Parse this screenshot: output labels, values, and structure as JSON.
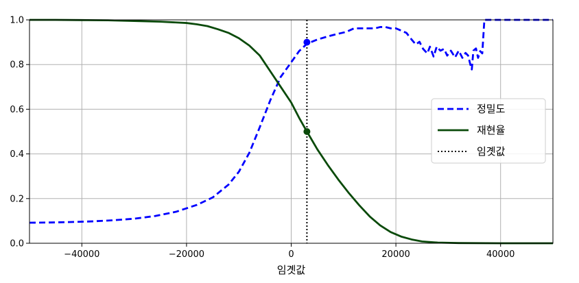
{
  "chart_data": {
    "type": "line",
    "title": "",
    "xlabel": "임곗값",
    "ylabel": "",
    "xlim": [
      -50000,
      50000
    ],
    "ylim": [
      0.0,
      1.0
    ],
    "grid": true,
    "legend_position": "center-right",
    "x_ticks": [
      -40000,
      -20000,
      0,
      20000,
      40000
    ],
    "x_tick_labels": [
      "−40000",
      "−20000",
      "0",
      "20000",
      "40000"
    ],
    "y_ticks": [
      0.0,
      0.2,
      0.4,
      0.6,
      0.8,
      1.0
    ],
    "y_tick_labels": [
      "0.0",
      "0.2",
      "0.4",
      "0.6",
      "0.8",
      "1.0"
    ],
    "threshold": {
      "name": "임곗값",
      "x": 3000,
      "color": "#000000",
      "style": "dotted"
    },
    "series": [
      {
        "name": "정밀도",
        "color": "#0000ff",
        "style": "dashed",
        "marker_point": [
          3000,
          0.9
        ],
        "points": [
          [
            -50000,
            0.092
          ],
          [
            -46000,
            0.093
          ],
          [
            -42000,
            0.095
          ],
          [
            -38000,
            0.098
          ],
          [
            -34000,
            0.103
          ],
          [
            -30000,
            0.11
          ],
          [
            -26000,
            0.122
          ],
          [
            -22000,
            0.141
          ],
          [
            -18000,
            0.172
          ],
          [
            -15000,
            0.205
          ],
          [
            -12000,
            0.262
          ],
          [
            -10000,
            0.32
          ],
          [
            -8000,
            0.405
          ],
          [
            -6000,
            0.52
          ],
          [
            -4000,
            0.64
          ],
          [
            -2000,
            0.745
          ],
          [
            0,
            0.81
          ],
          [
            1500,
            0.86
          ],
          [
            3000,
            0.893
          ],
          [
            5000,
            0.912
          ],
          [
            7000,
            0.926
          ],
          [
            9000,
            0.938
          ],
          [
            10500,
            0.946
          ],
          [
            12000,
            0.962
          ],
          [
            14000,
            0.962
          ],
          [
            16000,
            0.962
          ],
          [
            17000,
            0.968
          ],
          [
            18000,
            0.968
          ],
          [
            19000,
            0.962
          ],
          [
            20000,
            0.962
          ],
          [
            21000,
            0.952
          ],
          [
            22000,
            0.942
          ],
          [
            23000,
            0.912
          ],
          [
            23800,
            0.89
          ],
          [
            24500,
            0.902
          ],
          [
            25200,
            0.87
          ],
          [
            26000,
            0.85
          ],
          [
            26500,
            0.88
          ],
          [
            27200,
            0.836
          ],
          [
            27800,
            0.88
          ],
          [
            28500,
            0.862
          ],
          [
            29200,
            0.87
          ],
          [
            29800,
            0.84
          ],
          [
            30500,
            0.862
          ],
          [
            31300,
            0.832
          ],
          [
            32000,
            0.862
          ],
          [
            32700,
            0.83
          ],
          [
            33300,
            0.852
          ],
          [
            33800,
            0.84
          ],
          [
            34200,
            0.802
          ],
          [
            34500,
            0.778
          ],
          [
            34800,
            0.862
          ],
          [
            35300,
            0.872
          ],
          [
            35700,
            0.83
          ],
          [
            36100,
            0.86
          ],
          [
            36500,
            0.85
          ],
          [
            36900,
            1.0
          ],
          [
            42000,
            1.0
          ],
          [
            50000,
            1.0
          ]
        ]
      },
      {
        "name": "재현율",
        "color": "#0a4a0a",
        "style": "solid",
        "marker_point": [
          3000,
          0.5
        ],
        "points": [
          [
            -50000,
            1.0
          ],
          [
            -45000,
            1.0
          ],
          [
            -40000,
            0.999
          ],
          [
            -35000,
            0.998
          ],
          [
            -30000,
            0.995
          ],
          [
            -25000,
            0.992
          ],
          [
            -20000,
            0.986
          ],
          [
            -18000,
            0.98
          ],
          [
            -16000,
            0.972
          ],
          [
            -14000,
            0.958
          ],
          [
            -12000,
            0.942
          ],
          [
            -10000,
            0.918
          ],
          [
            -8000,
            0.885
          ],
          [
            -6000,
            0.84
          ],
          [
            -4000,
            0.77
          ],
          [
            -2000,
            0.7
          ],
          [
            0,
            0.63
          ],
          [
            1500,
            0.562
          ],
          [
            3000,
            0.5
          ],
          [
            5000,
            0.42
          ],
          [
            7000,
            0.35
          ],
          [
            9000,
            0.285
          ],
          [
            11000,
            0.225
          ],
          [
            13000,
            0.17
          ],
          [
            15000,
            0.12
          ],
          [
            17000,
            0.08
          ],
          [
            19000,
            0.05
          ],
          [
            21000,
            0.03
          ],
          [
            23000,
            0.017
          ],
          [
            25000,
            0.008
          ],
          [
            28000,
            0.003
          ],
          [
            32000,
            0.001
          ],
          [
            40000,
            0.0
          ],
          [
            50000,
            0.0
          ]
        ]
      }
    ]
  }
}
